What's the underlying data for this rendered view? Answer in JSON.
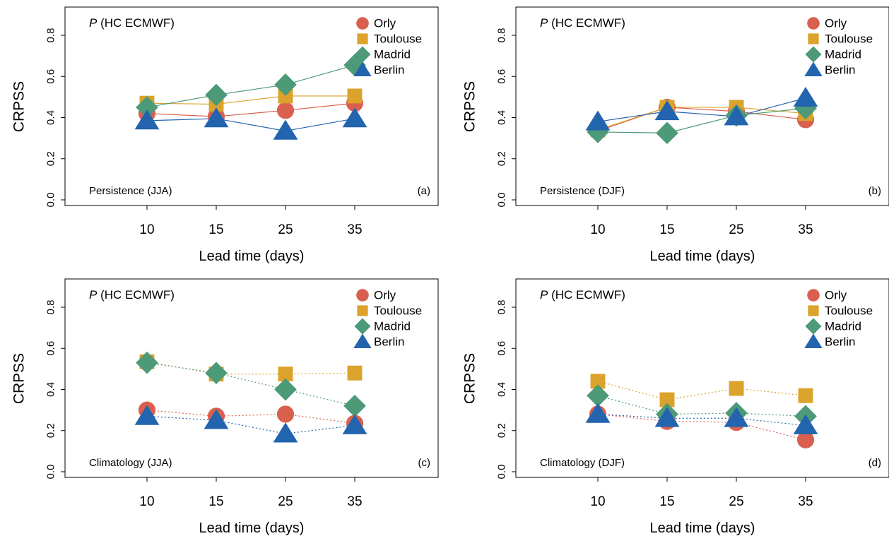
{
  "chart_data": [
    {
      "type": "line",
      "panel_label": "(a)",
      "title_var": "P",
      "title_rest": " (HC ECMWF)",
      "reference": "Persistence (JJA)",
      "xlabel": "Lead time (days)",
      "ylabel": "CRPSS",
      "x": [
        10,
        15,
        25,
        35
      ],
      "ylim": [
        0.0,
        0.8
      ],
      "yticks": [
        "0.0",
        "0.2",
        "0.4",
        "0.6",
        "0.8"
      ],
      "line_style": "solid",
      "legend_position": "top-right",
      "series": [
        {
          "name": "Orly",
          "values": [
            0.42,
            0.405,
            0.435,
            0.47
          ]
        },
        {
          "name": "Toulouse",
          "values": [
            0.47,
            0.465,
            0.505,
            0.505
          ]
        },
        {
          "name": "Madrid",
          "values": [
            0.45,
            0.51,
            0.56,
            0.655
          ]
        },
        {
          "name": "Berlin",
          "values": [
            0.385,
            0.395,
            0.335,
            0.395
          ]
        }
      ]
    },
    {
      "type": "line",
      "panel_label": "(b)",
      "title_var": "P",
      "title_rest": " (HC ECMWF)",
      "reference": "Persistence (DJF)",
      "xlabel": "Lead time (days)",
      "ylabel": "CRPSS",
      "x": [
        10,
        15,
        25,
        35
      ],
      "ylim": [
        0.0,
        0.8
      ],
      "yticks": [
        "0.0",
        "0.2",
        "0.4",
        "0.6",
        "0.8"
      ],
      "line_style": "solid",
      "legend_position": "top-right",
      "series": [
        {
          "name": "Orly",
          "values": [
            0.335,
            0.45,
            0.43,
            0.39
          ]
        },
        {
          "name": "Toulouse",
          "values": [
            0.34,
            0.45,
            0.45,
            0.42
          ]
        },
        {
          "name": "Madrid",
          "values": [
            0.33,
            0.325,
            0.41,
            0.445
          ]
        },
        {
          "name": "Berlin",
          "values": [
            0.38,
            0.43,
            0.405,
            0.495
          ]
        }
      ]
    },
    {
      "type": "line",
      "panel_label": "(c)",
      "title_var": "P",
      "title_rest": " (HC ECMWF)",
      "reference": "Climatology (JJA)",
      "xlabel": "Lead time (days)",
      "ylabel": "CRPSS",
      "x": [
        10,
        15,
        25,
        35
      ],
      "ylim": [
        0.0,
        0.8
      ],
      "yticks": [
        "0.0",
        "0.2",
        "0.4",
        "0.6",
        "0.8"
      ],
      "line_style": "dotted",
      "legend_position": "top-right",
      "series": [
        {
          "name": "Orly",
          "values": [
            0.3,
            0.27,
            0.28,
            0.235
          ]
        },
        {
          "name": "Toulouse",
          "values": [
            0.535,
            0.475,
            0.475,
            0.48
          ]
        },
        {
          "name": "Madrid",
          "values": [
            0.53,
            0.48,
            0.4,
            0.32
          ]
        },
        {
          "name": "Berlin",
          "values": [
            0.27,
            0.25,
            0.185,
            0.225
          ]
        }
      ]
    },
    {
      "type": "line",
      "panel_label": "(d)",
      "title_var": "P",
      "title_rest": " (HC ECMWF)",
      "reference": "Climatology (DJF)",
      "xlabel": "Lead time (days)",
      "ylabel": "CRPSS",
      "x": [
        10,
        15,
        25,
        35
      ],
      "ylim": [
        0.0,
        0.8
      ],
      "yticks": [
        "0.0",
        "0.2",
        "0.4",
        "0.6",
        "0.8"
      ],
      "line_style": "dotted",
      "legend_position": "top-right",
      "series": [
        {
          "name": "Orly",
          "values": [
            0.28,
            0.245,
            0.24,
            0.155
          ]
        },
        {
          "name": "Toulouse",
          "values": [
            0.44,
            0.35,
            0.405,
            0.37
          ]
        },
        {
          "name": "Madrid",
          "values": [
            0.37,
            0.28,
            0.285,
            0.27
          ]
        },
        {
          "name": "Berlin",
          "values": [
            0.28,
            0.26,
            0.26,
            0.225
          ]
        }
      ]
    }
  ],
  "style": {
    "colors": {
      "Orly": "#d9604f",
      "Toulouse": "#dba22c",
      "Madrid": "#4c9a77",
      "Berlin": "#2264ae"
    },
    "markers": {
      "Orly": "circle",
      "Toulouse": "square",
      "Madrid": "diamond",
      "Berlin": "triangle"
    }
  }
}
